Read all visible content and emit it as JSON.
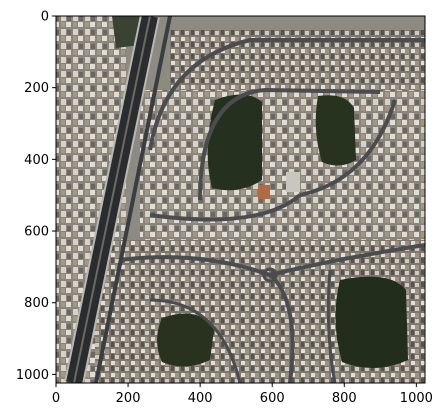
{
  "chart_data": {
    "type": "image",
    "title": "",
    "xlabel": "",
    "ylabel": "",
    "xlim": [
      0,
      1024
    ],
    "ylim": [
      1024,
      0
    ],
    "x_ticks": [
      0,
      200,
      400,
      600,
      800,
      1000
    ],
    "y_ticks": [
      0,
      200,
      400,
      600,
      800,
      1000
    ],
    "x_tick_labels": [
      "0",
      "200",
      "400",
      "600",
      "800",
      "1000"
    ],
    "y_tick_labels": [
      "0",
      "200",
      "400",
      "600",
      "800",
      "1000"
    ],
    "grid": false,
    "image_description": "aerial satellite view of a residential neighborhood with a divided highway on the left, curved streets lined with villas and three large dark green open plots"
  },
  "colors": {
    "ground": "#8d8a82",
    "road": "#3a3d42",
    "road_edge": "#b9b7b1",
    "highway": "#2a2c30",
    "median": "#6b6a63",
    "roof_light": "#d7d4cc",
    "roof_tan": "#a99a86",
    "roof_dark": "#5a5650",
    "vegetation": "#25301f",
    "vegetation_light": "#3b4634",
    "sand": "#9b8e77"
  }
}
